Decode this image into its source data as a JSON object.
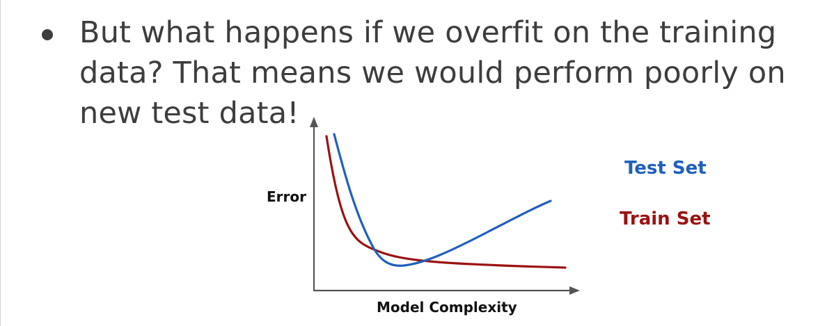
{
  "slide": {
    "bullet_lines": [
      "But what happens if we overfit on the training",
      "data? That means we would perform poorly on",
      "new test data!"
    ]
  },
  "chart_data": {
    "type": "line",
    "title": "",
    "xlabel": "Model Complexity",
    "ylabel": "Error",
    "axis_ticks": "none",
    "series": [
      {
        "name": "Test Set",
        "color": "#1f5fbf",
        "shape": "U-shaped: falls steeply, reaches a minimum, then rises"
      },
      {
        "name": "Train Set",
        "color": "#9b1111",
        "shape": "monotonically decreasing, flattening out"
      }
    ],
    "legend": {
      "placement": "right",
      "entries": [
        {
          "label": "Test Set",
          "color": "#1f5fbf"
        },
        {
          "label": "Train Set",
          "color": "#9b1111"
        }
      ]
    }
  }
}
